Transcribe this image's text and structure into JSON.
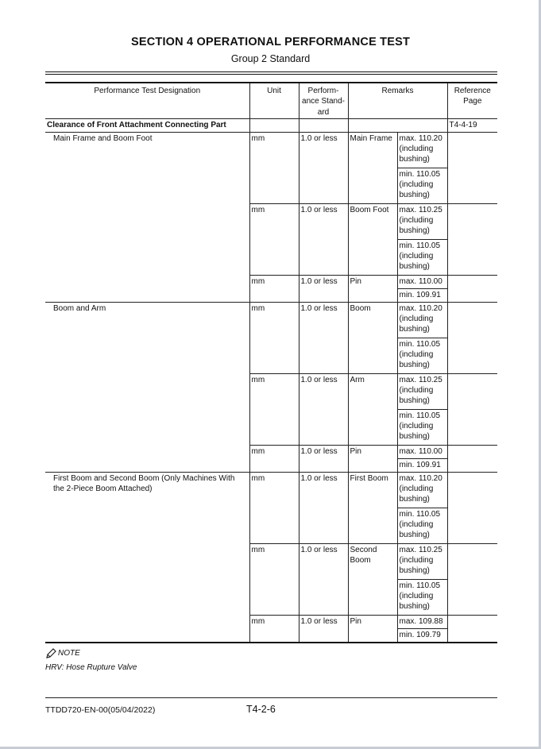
{
  "header": {
    "title": "SECTION 4 OPERATIONAL PERFORMANCE TEST",
    "subtitle": "Group 2 Standard"
  },
  "table": {
    "columns": [
      "Performance Test Designation",
      "Unit",
      "Perform-ance Stand-ard",
      "Remarks",
      "Reference Page"
    ],
    "section": {
      "label": "Clearance of Front Attachment Connecting Part",
      "ref": "T4-4-19"
    },
    "groups": [
      {
        "designation": "Main Frame and Boom Foot",
        "rows": [
          {
            "unit": "mm",
            "standard": "1.0 or less",
            "part": "Main Frame",
            "max": "max. 110.20 (including bushing)",
            "min": "min. 110.05 (including bushing)"
          },
          {
            "unit": "mm",
            "standard": "1.0 or less",
            "part": "Boom Foot",
            "max": "max. 110.25 (including bushing)",
            "min": "min. 110.05 (including bushing)"
          },
          {
            "unit": "mm",
            "standard": "1.0 or less",
            "part": "Pin",
            "max": "max. 110.00",
            "min": "min. 109.91"
          }
        ]
      },
      {
        "designation": "Boom and Arm",
        "rows": [
          {
            "unit": "mm",
            "standard": "1.0 or less",
            "part": "Boom",
            "max": "max. 110.20 (including bushing)",
            "min": "min. 110.05 (including bushing)"
          },
          {
            "unit": "mm",
            "standard": "1.0 or less",
            "part": "Arm",
            "max": "max. 110.25 (including bushing)",
            "min": "min. 110.05 (including bushing)"
          },
          {
            "unit": "mm",
            "standard": "1.0 or less",
            "part": "Pin",
            "max": "max. 110.00",
            "min": "min. 109.91"
          }
        ]
      },
      {
        "designation": "First Boom and Second Boom (Only Machines With the 2-Piece Boom Attached)",
        "rows": [
          {
            "unit": "mm",
            "standard": "1.0 or less",
            "part": "First Boom",
            "max": "max. 110.20 (including bushing)",
            "min": "min. 110.05 (including bushing)"
          },
          {
            "unit": "mm",
            "standard": "1.0 or less",
            "part": "Second Boom",
            "max": "max. 110.25 (including bushing)",
            "min": "min. 110.05 (including bushing)"
          },
          {
            "unit": "mm",
            "standard": "1.0 or less",
            "part": "Pin",
            "max": "max. 109.88",
            "min": "min. 109.79"
          }
        ]
      }
    ]
  },
  "note": {
    "icon": "pencil-icon",
    "label": "NOTE",
    "text": "HRV: Hose Rupture Valve"
  },
  "footer": {
    "doc_id": "TTDD720-EN-00(05/04/2022)",
    "page": "T4-2-6"
  }
}
